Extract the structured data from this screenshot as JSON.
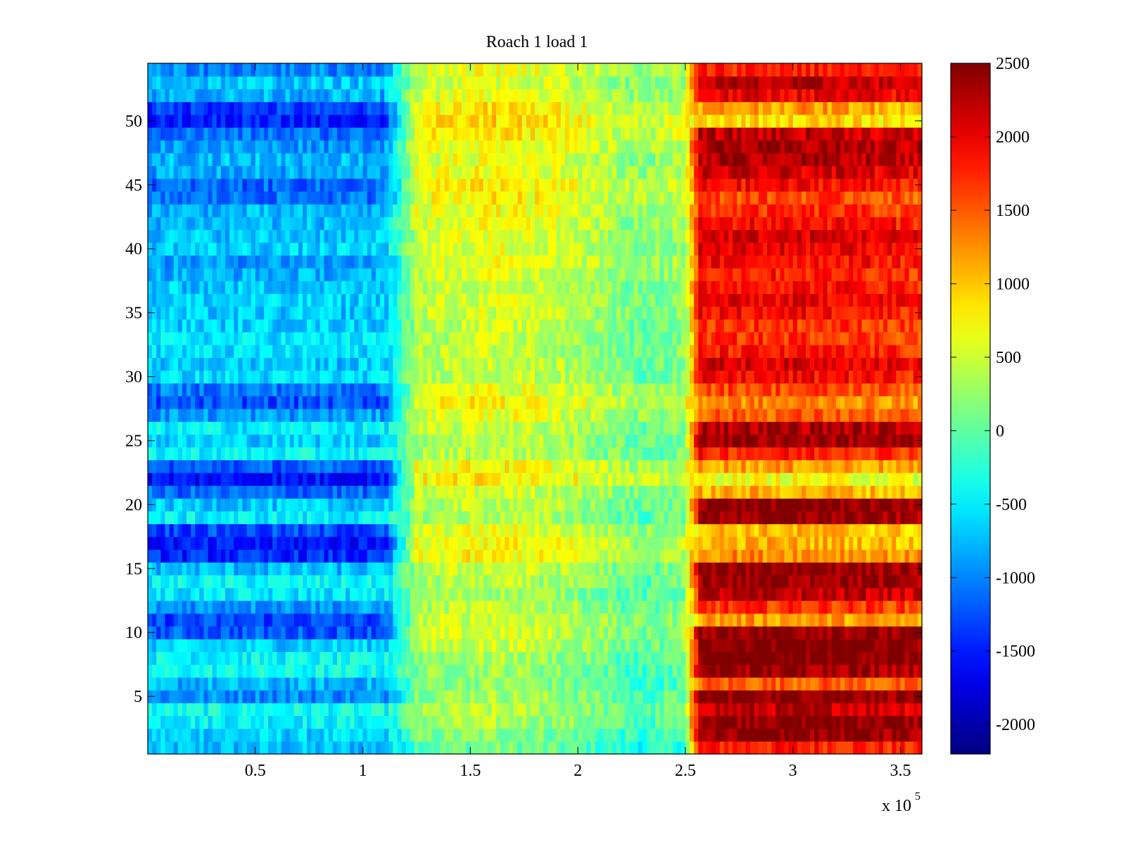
{
  "chart_data": {
    "type": "heatmap",
    "title": "Roach 1 load 1",
    "xlabel": "",
    "ylabel": "",
    "x_multiplier_label": "x 10",
    "x_multiplier_exponent": "5",
    "xlim": [
      0,
      3.6
    ],
    "ylim": [
      0.5,
      54.5
    ],
    "x_ticks": [
      0.5,
      1,
      1.5,
      2,
      2.5,
      3,
      3.5
    ],
    "x_tick_labels": [
      "0.5",
      "1",
      "1.5",
      "2",
      "2.5",
      "3",
      "3.5"
    ],
    "y_ticks": [
      5,
      10,
      15,
      20,
      25,
      30,
      35,
      40,
      45,
      50
    ],
    "y_tick_labels": [
      "5",
      "10",
      "15",
      "20",
      "25",
      "30",
      "35",
      "40",
      "45",
      "50"
    ],
    "colorbar": {
      "colormap": "jet",
      "clim": [
        -2200,
        2500
      ],
      "ticks": [
        -2000,
        -1500,
        -1000,
        -500,
        0,
        500,
        1000,
        1500,
        2000,
        2500
      ],
      "tick_labels": [
        "-2000",
        "-1500",
        "-1000",
        "-500",
        "0",
        "500",
        "1000",
        "1500",
        "2000",
        "2500"
      ]
    },
    "rows": 54,
    "x_regions": [
      {
        "x_start": 0.0,
        "x_end": 1.15,
        "description_value": "row_base"
      },
      {
        "x_start": 1.15,
        "x_end": 2.55,
        "description_value": "mid_band"
      },
      {
        "x_start": 2.58,
        "x_end": 3.6,
        "description_value": "row_high"
      }
    ],
    "row_values": {
      "row_index_start": 1,
      "left_region": [
        -750,
        -650,
        -450,
        -400,
        -950,
        -800,
        -400,
        -450,
        -650,
        -1200,
        -1300,
        -900,
        -550,
        -450,
        -750,
        -1450,
        -1550,
        -1300,
        -500,
        -700,
        -1150,
        -1550,
        -1200,
        -450,
        -650,
        -500,
        -900,
        -1250,
        -1050,
        -600,
        -700,
        -600,
        -550,
        -650,
        -700,
        -650,
        -700,
        -800,
        -900,
        -650,
        -700,
        -750,
        -800,
        -1100,
        -1150,
        -850,
        -750,
        -900,
        -1100,
        -1500,
        -1350,
        -800,
        -700,
        -1000
      ],
      "mid_region": [
        -100,
        0,
        150,
        200,
        150,
        50,
        100,
        150,
        300,
        350,
        350,
        250,
        150,
        200,
        300,
        550,
        550,
        450,
        200,
        250,
        350,
        650,
        550,
        250,
        250,
        300,
        450,
        600,
        450,
        300,
        300,
        300,
        250,
        300,
        350,
        350,
        350,
        400,
        450,
        400,
        400,
        450,
        500,
        600,
        600,
        500,
        450,
        550,
        650,
        700,
        650,
        450,
        400,
        500
      ],
      "right_region": [
        1800,
        2450,
        2500,
        2200,
        2500,
        1500,
        2400,
        2550,
        2550,
        2450,
        1200,
        1700,
        2200,
        2400,
        2450,
        1300,
        1100,
        1050,
        2400,
        2500,
        1100,
        700,
        1200,
        1800,
        2400,
        2300,
        1500,
        1300,
        1600,
        1900,
        2100,
        1800,
        1700,
        1700,
        1900,
        2000,
        1900,
        1800,
        1900,
        2000,
        2100,
        1900,
        1700,
        1600,
        1900,
        2100,
        2300,
        2300,
        2200,
        900,
        1200,
        2000,
        2200,
        1800
      ]
    }
  }
}
